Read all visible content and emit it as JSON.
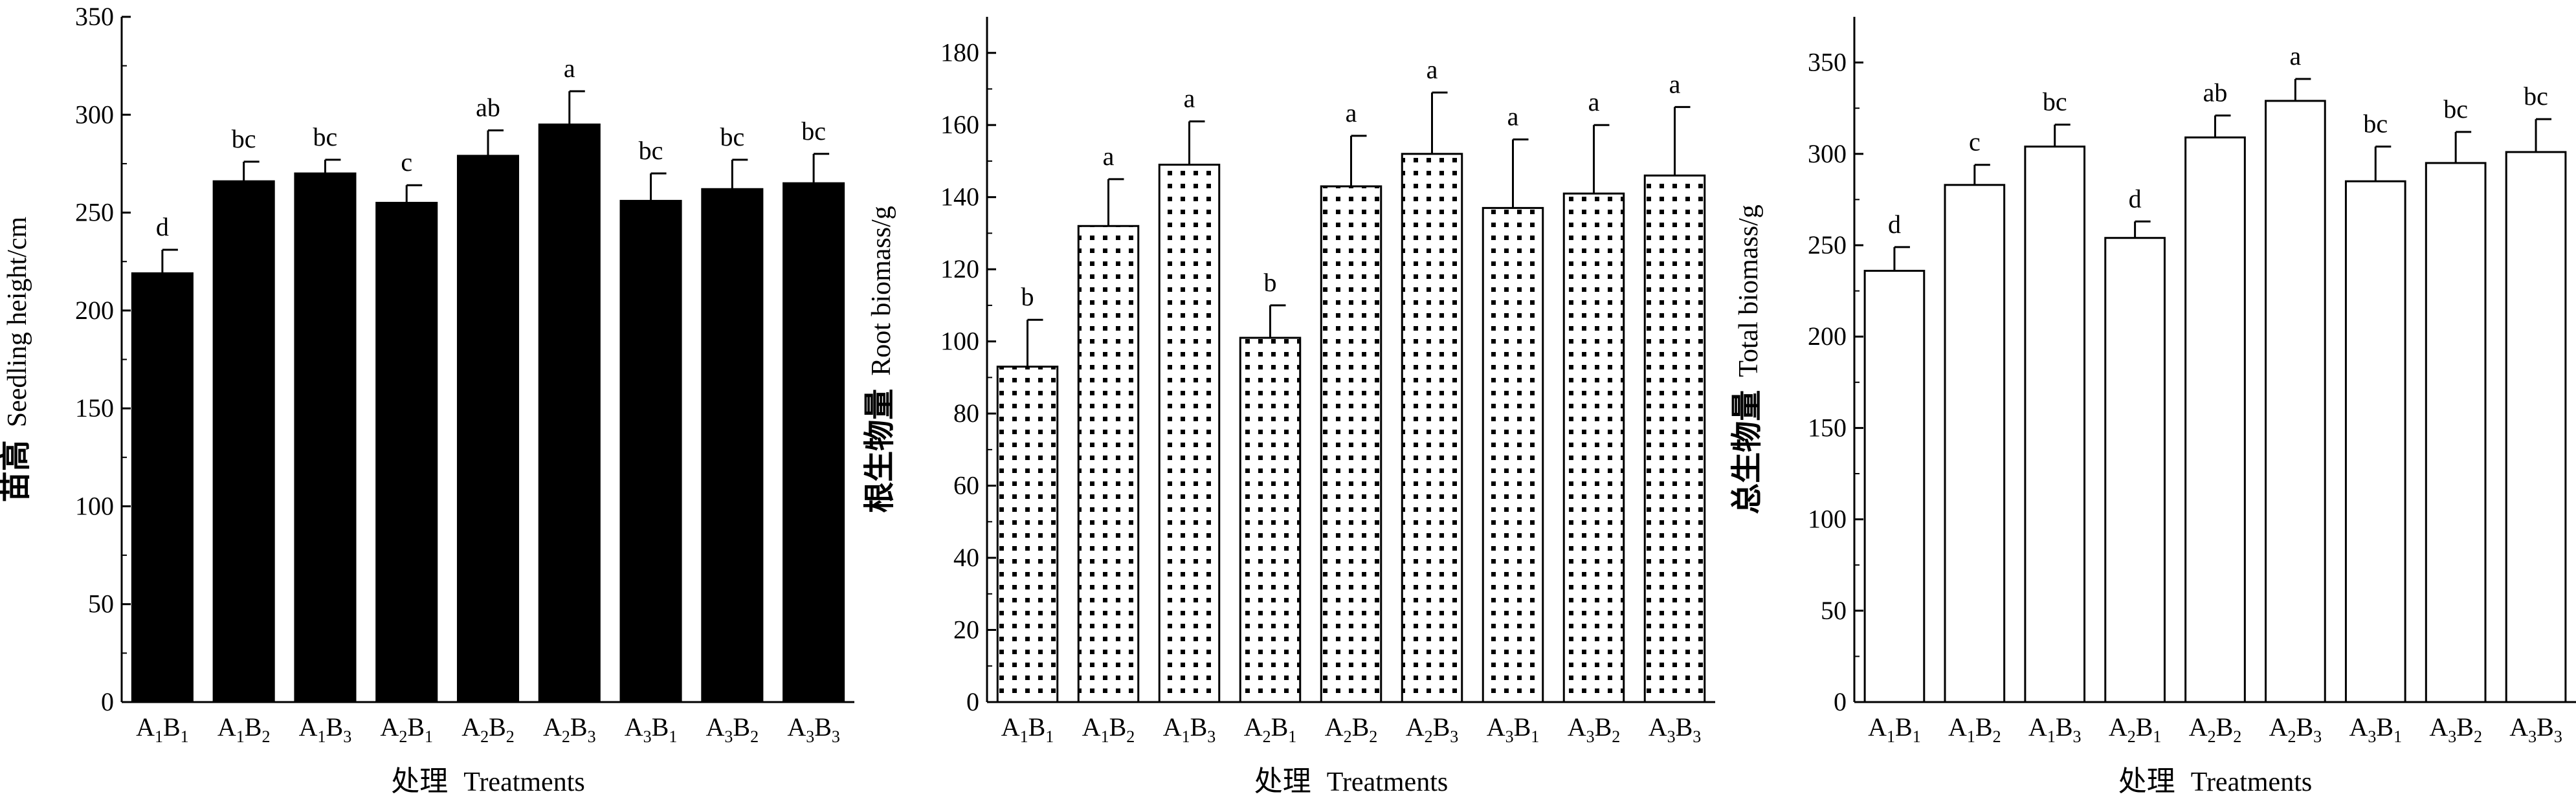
{
  "chart_data": [
    {
      "type": "bar",
      "fill": "solid-black",
      "categories": [
        "A1B1",
        "A1B2",
        "A1B3",
        "A2B1",
        "A2B2",
        "A2B3",
        "A3B1",
        "A3B2",
        "A3B3"
      ],
      "values": [
        219,
        266,
        270,
        255,
        279,
        295,
        256,
        262,
        265
      ],
      "errors": [
        12,
        10,
        7,
        9,
        13,
        17,
        14,
        15,
        15
      ],
      "significance": [
        "d",
        "bc",
        "bc",
        "c",
        "ab",
        "a",
        "bc",
        "bc",
        "bc"
      ],
      "ylabel_zh": "苗高",
      "ylabel_en": "Seedling height/cm",
      "xlabel_zh": "处理",
      "xlabel_en": "Treatments",
      "ylim": [
        0,
        350
      ],
      "yticks": [
        0,
        50,
        100,
        150,
        200,
        250,
        300,
        350
      ]
    },
    {
      "type": "bar",
      "fill": "dotted",
      "categories": [
        "A1B1",
        "A1B2",
        "A1B3",
        "A2B1",
        "A2B2",
        "A2B3",
        "A3B1",
        "A3B2",
        "A3B3"
      ],
      "values": [
        93,
        132,
        149,
        101,
        143,
        152,
        137,
        141,
        146
      ],
      "errors": [
        13,
        13,
        12,
        9,
        14,
        17,
        19,
        19,
        19
      ],
      "significance": [
        "b",
        "a",
        "a",
        "b",
        "a",
        "a",
        "a",
        "a",
        "a"
      ],
      "ylabel_zh": "根生物量",
      "ylabel_en": "Root biomass/g",
      "xlabel_zh": "处理",
      "xlabel_en": "Treatments",
      "ylim": [
        0,
        190
      ],
      "yticks": [
        0,
        20,
        40,
        60,
        80,
        100,
        120,
        140,
        160,
        180
      ]
    },
    {
      "type": "bar",
      "fill": "white",
      "categories": [
        "A1B1",
        "A1B2",
        "A1B3",
        "A2B1",
        "A2B2",
        "A2B3",
        "A3B1",
        "A3B2",
        "A3B3"
      ],
      "values": [
        236,
        283,
        304,
        254,
        309,
        329,
        285,
        295,
        301
      ],
      "errors": [
        13,
        11,
        12,
        9,
        12,
        12,
        19,
        17,
        18
      ],
      "significance": [
        "d",
        "c",
        "bc",
        "d",
        "ab",
        "a",
        "bc",
        "bc",
        "bc"
      ],
      "ylabel_zh": "总生物量",
      "ylabel_en": "Total biomass/g",
      "xlabel_zh": "处理",
      "xlabel_en": "Treatments",
      "ylim": [
        0,
        375
      ],
      "yticks": [
        0,
        50,
        100,
        150,
        200,
        250,
        300,
        350
      ]
    }
  ]
}
